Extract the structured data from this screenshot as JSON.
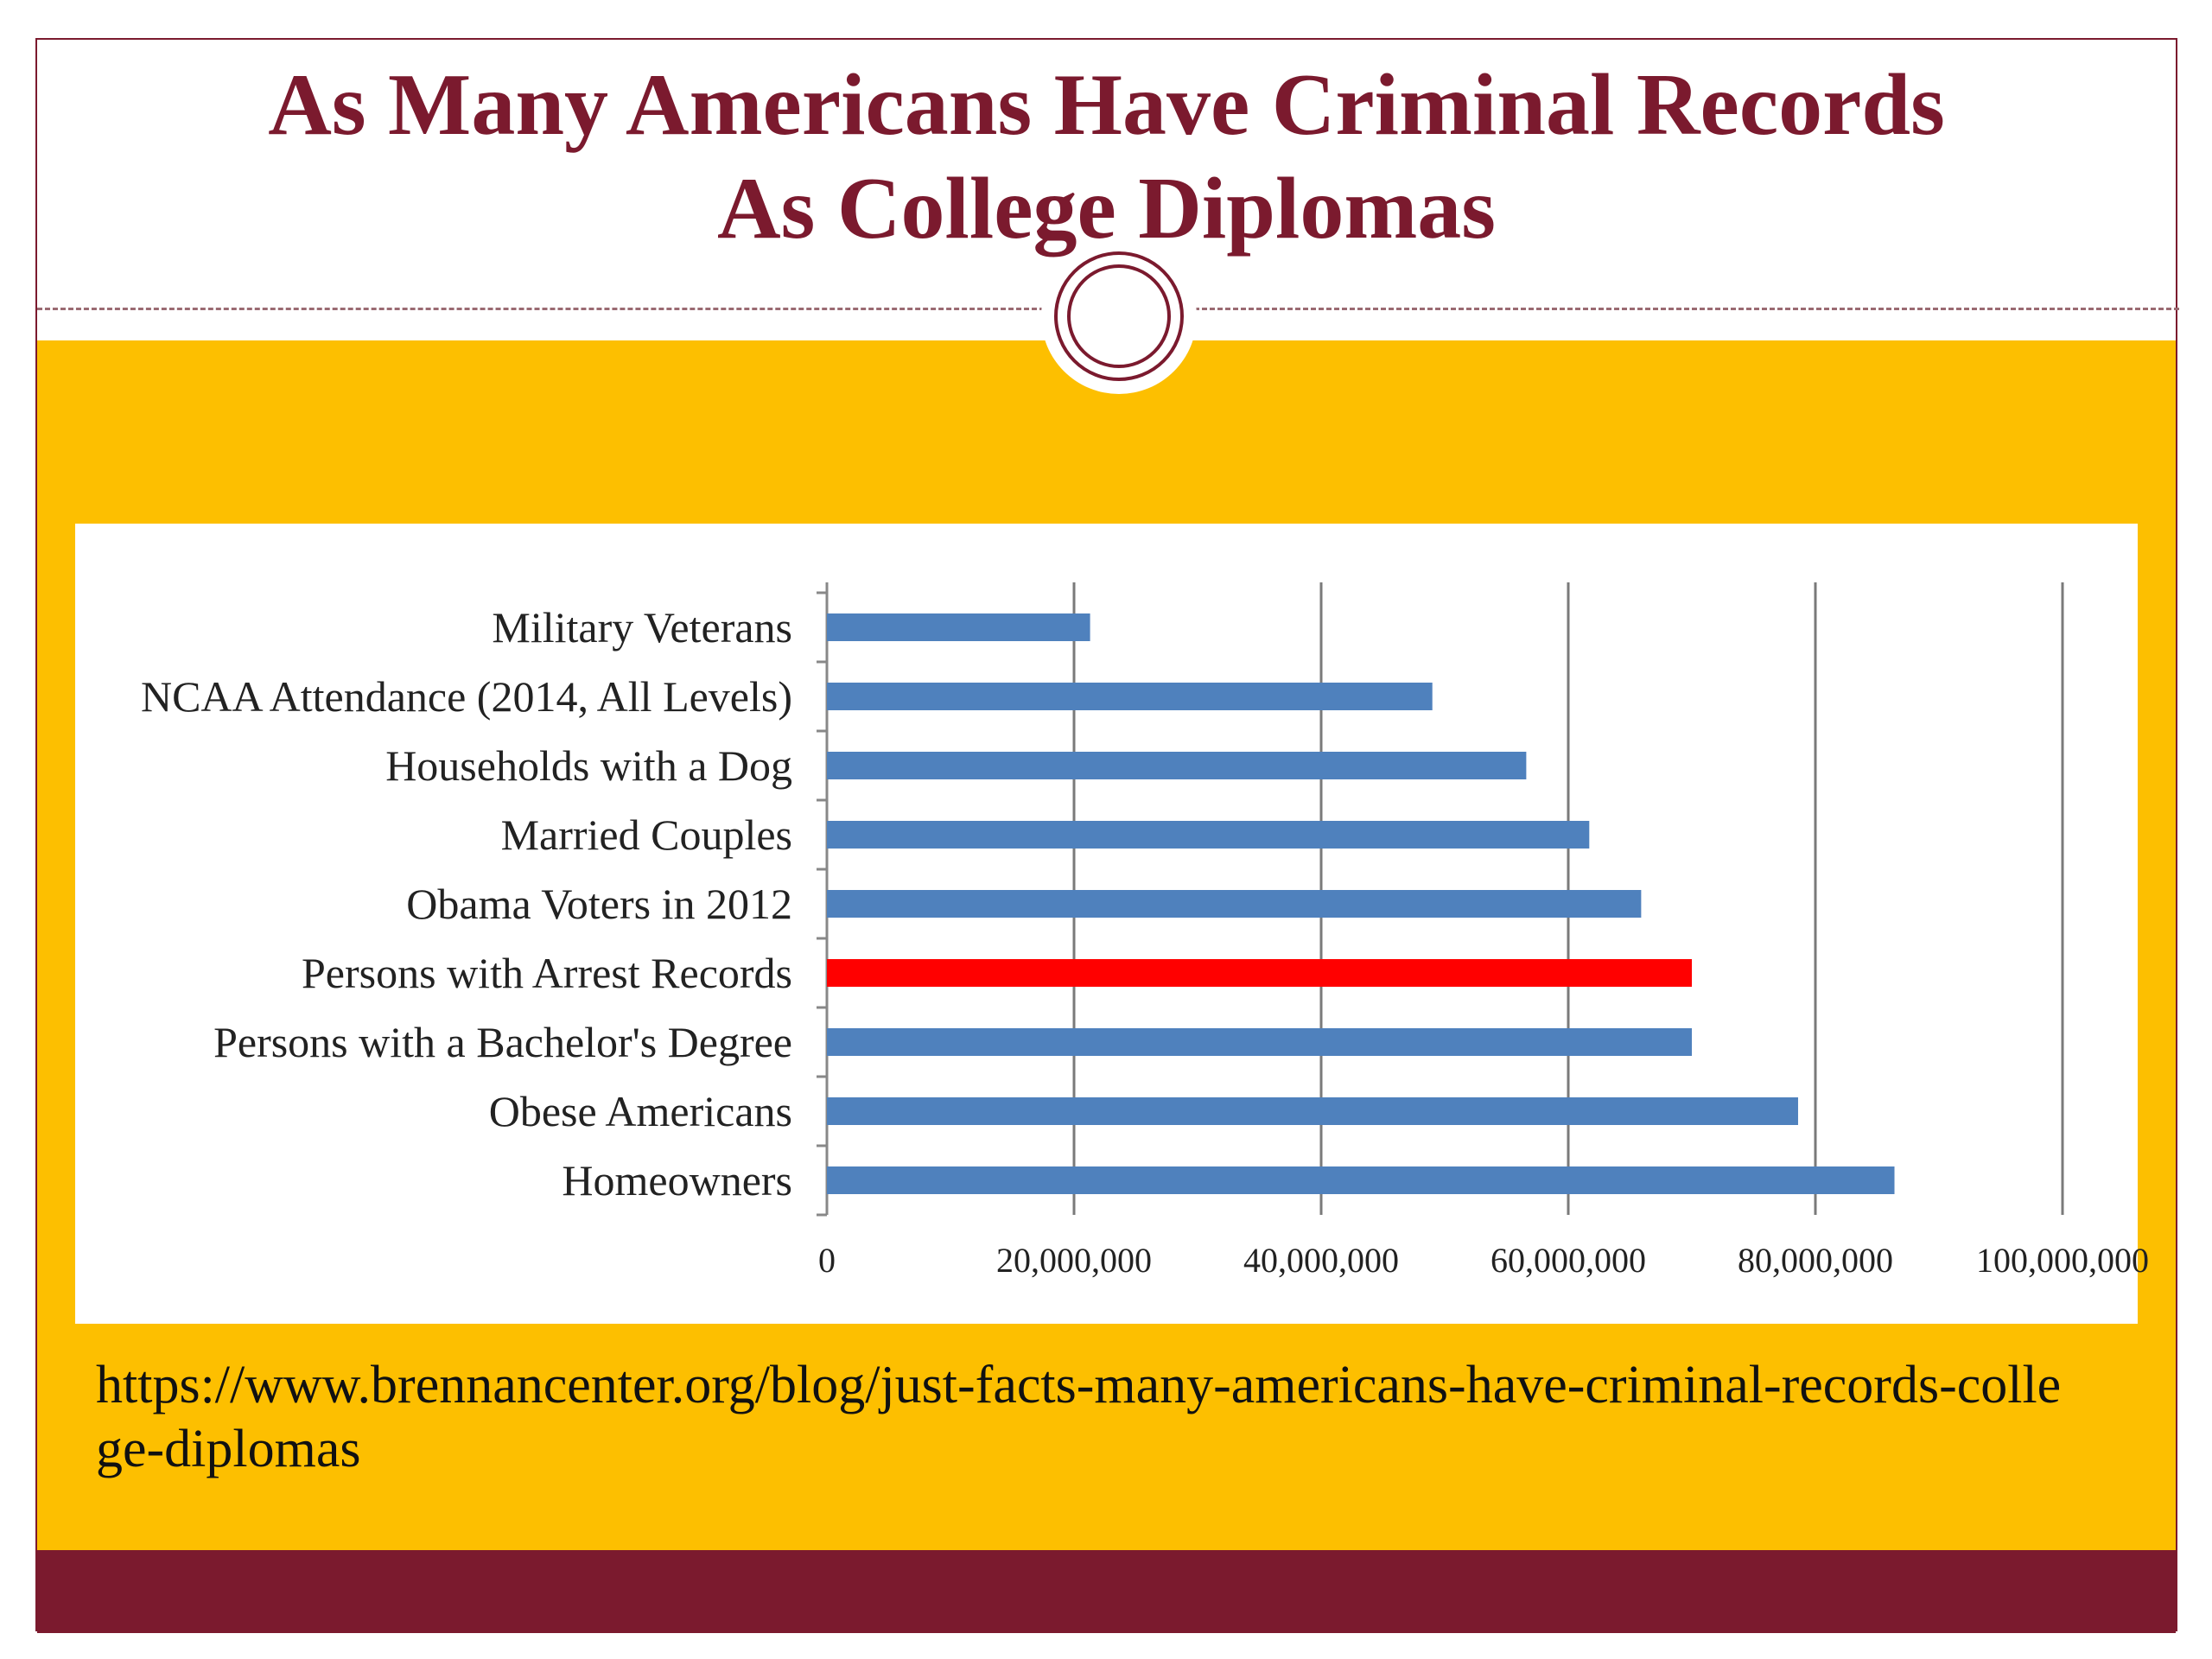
{
  "slide": {
    "title_line1": "As Many Americans Have Criminal Records",
    "title_line2": "As College Diplomas",
    "source_url": "https://www.brennancenter.org/blog/just-facts-many-americans-have-criminal-records-college-diplomas"
  },
  "colors": {
    "title": "#7b1a2e",
    "band": "#fdbf00",
    "footer": "#7b1a2e",
    "bar_default": "#4f81bd",
    "bar_highlight": "#ff0000"
  },
  "chart_data": {
    "type": "bar",
    "orientation": "horizontal",
    "categories": [
      "Military Veterans",
      "NCAA Attendance (2014, All Levels)",
      "Households with a Dog",
      "Married Couples",
      "Obama Voters in 2012",
      "Persons with Arrest Records",
      "Persons with a Bachelor's Degree",
      "Obese Americans",
      "Homeowners"
    ],
    "values": [
      21300000,
      49000000,
      56600000,
      61700000,
      65900000,
      70000000,
      70000000,
      78600000,
      86400000
    ],
    "highlight_category": "Persons with Arrest Records",
    "xlim": [
      0,
      100000000
    ],
    "x_ticks": [
      0,
      20000000,
      40000000,
      60000000,
      80000000,
      100000000
    ],
    "x_tick_labels": [
      "0",
      "20,000,000",
      "40,000,000",
      "60,000,000",
      "80,000,000",
      "100,000,000"
    ],
    "grid": "vertical",
    "title": "",
    "xlabel": "",
    "ylabel": ""
  }
}
